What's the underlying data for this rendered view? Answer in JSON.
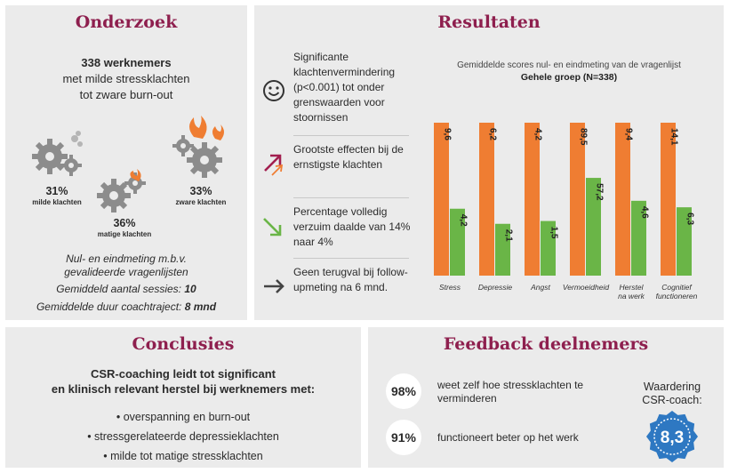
{
  "onderzoek": {
    "title": "Onderzoek",
    "intro_bold": "338 werknemers",
    "intro_line2": "met milde stressklachten",
    "intro_line3": "tot zware burn-out",
    "groups": [
      {
        "pct": "31%",
        "label": "milde klachten"
      },
      {
        "pct": "36%",
        "label": "matige klachten"
      },
      {
        "pct": "33%",
        "label": "zware klachten"
      }
    ],
    "method_line1": "Nul- en eindmeting m.b.v.",
    "method_line2": "gevalideerde vragenlijsten",
    "sessions_label": "Gemiddeld aantal sessies:",
    "sessions_value": "10",
    "duration_label": "Gemiddelde duur coachtraject:",
    "duration_value": "8 mnd"
  },
  "resultaten": {
    "title": "Resultaten",
    "items": [
      {
        "icon": "smiley-icon",
        "text": "Significante klachtenvermindering (p<0.001) tot onder grenswaarden voor stoornissen"
      },
      {
        "icon": "arrow-up-right-icon",
        "text": "Grootste effecten bij de ernstigste klachten"
      },
      {
        "icon": "arrow-down-right-icon",
        "text": "Percentage volledig verzuim daalde van 14% naar 4%"
      },
      {
        "icon": "arrow-right-icon",
        "text": "Geen terugval bij follow-upmeting na 6 mnd."
      }
    ]
  },
  "chart_data": {
    "type": "bar",
    "title": "Gemiddelde scores nul- en eindmeting van de vragenlijst",
    "subtitle": "Gehele groep (N=338)",
    "categories": [
      "Stress",
      "Depressie",
      "Angst",
      "Vermoeidheid",
      "Herstel na werk",
      "Cognitief functioneren"
    ],
    "category_lines": [
      [
        "Stress"
      ],
      [
        "Depressie"
      ],
      [
        "Angst"
      ],
      [
        "Vermoeidheid"
      ],
      [
        "Herstel",
        "na werk"
      ],
      [
        "Cognitief",
        "functioneren"
      ]
    ],
    "series": [
      {
        "color": "#ef7d32",
        "values": [
          9.6,
          6.2,
          4.2,
          89.5,
          9.4,
          14.1
        ],
        "labels": [
          "9,6",
          "6,2",
          "4,2",
          "89,5",
          "9,4",
          "14,1"
        ]
      },
      {
        "color": "#6ab547",
        "values": [
          4.2,
          2.1,
          1.5,
          57.2,
          4.6,
          6.3
        ],
        "labels": [
          "4,2",
          "2,1",
          "1,5",
          "57,2",
          "4,6",
          "6,3"
        ]
      }
    ],
    "note_scale": "per-category scales"
  },
  "conclusies": {
    "title": "Conclusies",
    "lead_line1": "CSR-coaching leidt tot significant",
    "lead_line2": "en klinisch relevant herstel bij werknemers met:",
    "items": [
      "• overspanning en burn-out",
      "• stressgerelateerde depressieklachten",
      "• milde tot matige stressklachten"
    ]
  },
  "feedback": {
    "title": "Feedback deelnemers",
    "items": [
      {
        "pct": "98%",
        "text": "weet zelf hoe stressklachten te verminderen"
      },
      {
        "pct": "91%",
        "text": "functioneert beter op het werk"
      }
    ],
    "rating_line1": "Waardering",
    "rating_line2": "CSR-coach:",
    "rating_value": "8,3",
    "badge_color": "#2e78c2"
  }
}
